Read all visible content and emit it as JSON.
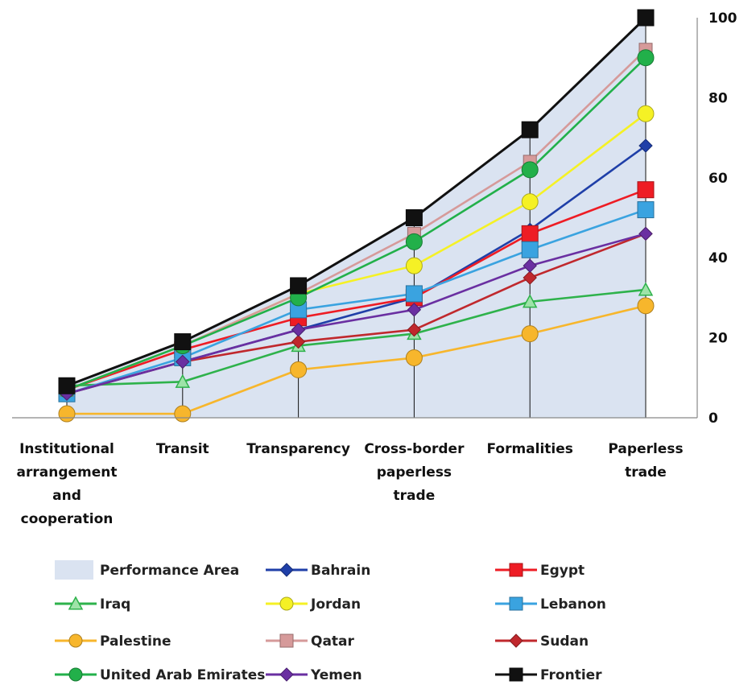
{
  "chart_data": {
    "type": "line",
    "title": "",
    "xlabel": "",
    "ylabel": "",
    "categories": [
      [
        "Institutional",
        "arrangement",
        "and",
        "cooperation"
      ],
      [
        "Transit"
      ],
      [
        "Transparency"
      ],
      [
        "Cross-border",
        "paperless",
        "trade"
      ],
      [
        "Formalities"
      ],
      [
        "Paperless",
        "trade"
      ]
    ],
    "ylim": [
      0,
      100
    ],
    "yticks": [
      0,
      20,
      40,
      60,
      80,
      100
    ],
    "grid": false,
    "legend_position": "bottom",
    "area": {
      "name": "Performance Area",
      "color": "#dae3f1",
      "values": [
        8,
        19,
        33,
        50,
        72,
        100
      ]
    },
    "series": [
      {
        "name": "Bahrain",
        "color": "#1f3fa8",
        "marker": "diamond",
        "values": [
          6,
          14,
          22,
          30,
          47,
          68
        ]
      },
      {
        "name": "Egypt",
        "color": "#ee1c24",
        "marker": "square",
        "values": [
          7,
          17,
          25,
          30,
          46,
          57
        ]
      },
      {
        "name": "Iraq",
        "color": "#2eb24b",
        "marker": "triangle",
        "values": [
          8,
          9,
          18,
          21,
          29,
          32
        ]
      },
      {
        "name": "Jordan",
        "color": "#f5f125",
        "marker": "circle",
        "values": [
          7,
          18,
          31,
          38,
          54,
          76
        ]
      },
      {
        "name": "Lebanon",
        "color": "#3aa3e0",
        "marker": "square",
        "values": [
          6,
          15,
          27,
          31,
          42,
          52
        ]
      },
      {
        "name": "Palestine",
        "color": "#f7b62c",
        "marker": "circle",
        "values": [
          1,
          1,
          12,
          15,
          21,
          28
        ]
      },
      {
        "name": "Qatar",
        "color": "#d69a9a",
        "marker": "square",
        "values": [
          7,
          18,
          31,
          46,
          64,
          92
        ]
      },
      {
        "name": "Sudan",
        "color": "#c0282d",
        "marker": "diamond",
        "values": [
          6,
          14,
          19,
          22,
          35,
          46
        ]
      },
      {
        "name": "United Arab Emirates",
        "color": "#22b04a",
        "marker": "circle",
        "values": [
          7,
          18,
          30,
          44,
          62,
          90
        ]
      },
      {
        "name": "Yemen",
        "color": "#6a2fa1",
        "marker": "diamond",
        "values": [
          6,
          14,
          22,
          27,
          38,
          46
        ]
      },
      {
        "name": "Frontier",
        "color": "#111111",
        "marker": "square",
        "values": [
          8,
          19,
          33,
          50,
          72,
          100
        ]
      }
    ]
  }
}
